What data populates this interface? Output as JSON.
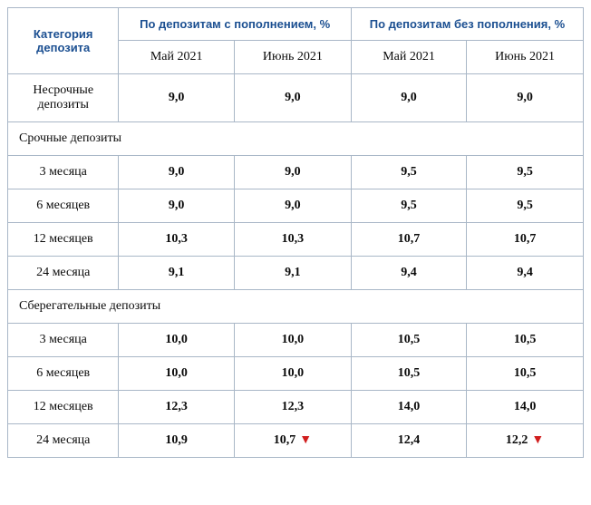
{
  "headers": {
    "category": "Категория депозита",
    "with_topup": "По депозитам с пополнением, %",
    "without_topup": "По депозитам без пополнения, %",
    "may": "Май 2021",
    "june": "Июнь 2021"
  },
  "sections": {
    "non_term": {
      "label": "Несрочные депозиты",
      "values": [
        "9,0",
        "9,0",
        "9,0",
        "9,0"
      ]
    },
    "term": {
      "title": "Срочные депозиты",
      "rows": [
        {
          "label": "3 месяца",
          "values": [
            "9,0",
            "9,0",
            "9,5",
            "9,5"
          ],
          "flags": [
            false,
            false,
            false,
            false
          ]
        },
        {
          "label": "6 месяцев",
          "values": [
            "9,0",
            "9,0",
            "9,5",
            "9,5"
          ],
          "flags": [
            false,
            false,
            false,
            false
          ]
        },
        {
          "label": "12 месяцев",
          "values": [
            "10,3",
            "10,3",
            "10,7",
            "10,7"
          ],
          "flags": [
            false,
            false,
            false,
            false
          ]
        },
        {
          "label": "24 месяца",
          "values": [
            "9,1",
            "9,1",
            "9,4",
            "9,4"
          ],
          "flags": [
            false,
            false,
            false,
            false
          ]
        }
      ]
    },
    "savings": {
      "title": "Сберегательные депозиты",
      "rows": [
        {
          "label": "3 месяца",
          "values": [
            "10,0",
            "10,0",
            "10,5",
            "10,5"
          ],
          "flags": [
            false,
            false,
            false,
            false
          ]
        },
        {
          "label": "6 месяцев",
          "values": [
            "10,0",
            "10,0",
            "10,5",
            "10,5"
          ],
          "flags": [
            false,
            false,
            false,
            false
          ]
        },
        {
          "label": "12 месяцев",
          "values": [
            "12,3",
            "12,3",
            "14,0",
            "14,0"
          ],
          "flags": [
            false,
            false,
            false,
            false
          ]
        },
        {
          "label": "24 месяца",
          "values": [
            "10,9",
            "10,7",
            "12,4",
            "12,2"
          ],
          "flags": [
            false,
            true,
            false,
            true
          ]
        }
      ]
    }
  },
  "style": {
    "border_color": "#a9b7c7",
    "header_text_color": "#1b4f91",
    "arrow_color": "#d11e1e",
    "arrow_glyph": "▼"
  }
}
